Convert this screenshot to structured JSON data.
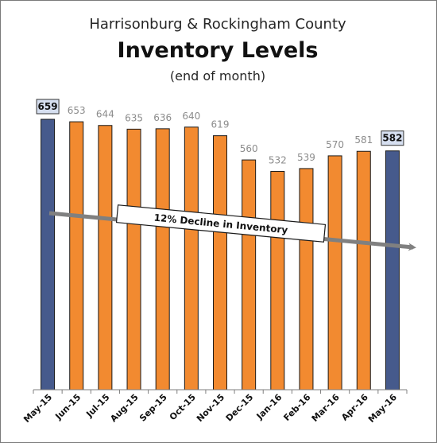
{
  "chart_data": {
    "type": "bar",
    "title_line1": "Harrisonburg & Rockingham County",
    "title": "Inventory Levels",
    "subtitle": "(end of month)",
    "categories": [
      "May-15",
      "Jun-15",
      "Jul-15",
      "Aug-15",
      "Sep-15",
      "Oct-15",
      "Nov-15",
      "Dec-15",
      "Jan-16",
      "Feb-16",
      "Mar-16",
      "Apr-16",
      "May-16"
    ],
    "values": [
      659,
      653,
      644,
      635,
      636,
      640,
      619,
      560,
      532,
      539,
      570,
      581,
      582
    ],
    "highlighted": [
      "May-15",
      "May-16"
    ],
    "ylim": [
      0,
      720
    ],
    "grid": false,
    "annotation": "12% Decline in Inventory",
    "colors": {
      "bar": "#f28a30",
      "bar_highlight": "#465a8c",
      "bar_outline": "#1a1a1a",
      "label_box_fill": "#d6dff0"
    }
  }
}
